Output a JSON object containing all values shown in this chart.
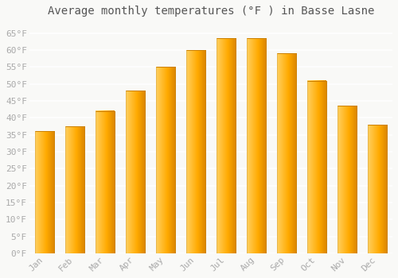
{
  "title": "Average monthly temperatures (°F ) in Basse Lasne",
  "months": [
    "Jan",
    "Feb",
    "Mar",
    "Apr",
    "May",
    "Jun",
    "Jul",
    "Aug",
    "Sep",
    "Oct",
    "Nov",
    "Dec"
  ],
  "values": [
    36,
    37.5,
    42,
    48,
    55,
    60,
    63.5,
    63.5,
    59,
    51,
    43.5,
    38
  ],
  "bar_color_light": "#FFD966",
  "bar_color_main": "#FFA500",
  "bar_color_dark": "#E08800",
  "ylim": [
    0,
    68
  ],
  "yticks": [
    0,
    5,
    10,
    15,
    20,
    25,
    30,
    35,
    40,
    45,
    50,
    55,
    60,
    65
  ],
  "ytick_labels": [
    "0°F",
    "5°F",
    "10°F",
    "15°F",
    "20°F",
    "25°F",
    "30°F",
    "35°F",
    "40°F",
    "45°F",
    "50°F",
    "55°F",
    "60°F",
    "65°F"
  ],
  "background_color": "#f9f9f7",
  "grid_color": "#e8e8e8",
  "title_fontsize": 10,
  "tick_fontsize": 8,
  "tick_color": "#aaaaaa"
}
